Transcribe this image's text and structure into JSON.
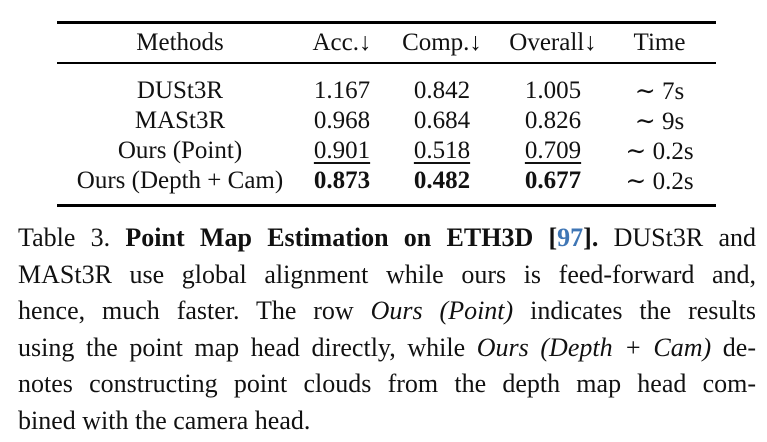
{
  "colors": {
    "citation_blue": "#3f76b5",
    "text": "#111111",
    "rule": "#000000",
    "background": "#ffffff"
  },
  "table": {
    "headers": [
      "Methods",
      "Acc.↓",
      "Comp.↓",
      "Overall↓",
      "Time"
    ],
    "rows": [
      {
        "method": "DUSt3R",
        "acc": "1.167",
        "comp": "0.842",
        "overall": "1.005",
        "time": "∼ 7s"
      },
      {
        "method": "MASt3R",
        "acc": "0.968",
        "comp": "0.684",
        "overall": "0.826",
        "time": "∼ 9s"
      },
      {
        "method": "Ours (Point)",
        "acc": "0.901",
        "comp": "0.518",
        "overall": "0.709",
        "time": "∼ 0.2s"
      },
      {
        "method": "Ours (Depth + Cam)",
        "acc": "0.873",
        "comp": "0.482",
        "overall": "0.677",
        "time": "∼ 0.2s"
      }
    ]
  },
  "caption": {
    "l1_label": "Table 3. ",
    "l1_bold": "Point Map Estimation on ETH3D [",
    "l1_cite": "97",
    "l1_bold_end": "].",
    "l1_rest": " DUSt3R and",
    "l2": "MASt3R use global alignment while ours is feed-forward and,",
    "l3_pre": "hence, much faster. The row ",
    "l3_italic": "Ours (Point)",
    "l3_rest": " indicates the results",
    "l4_pre": "using the point map head directly, while ",
    "l4_italic": "Ours (Depth + Cam)",
    "l4_rest": " de-",
    "l5": "notes constructing point clouds from the depth map head com-",
    "l6": "bined with the camera head."
  }
}
